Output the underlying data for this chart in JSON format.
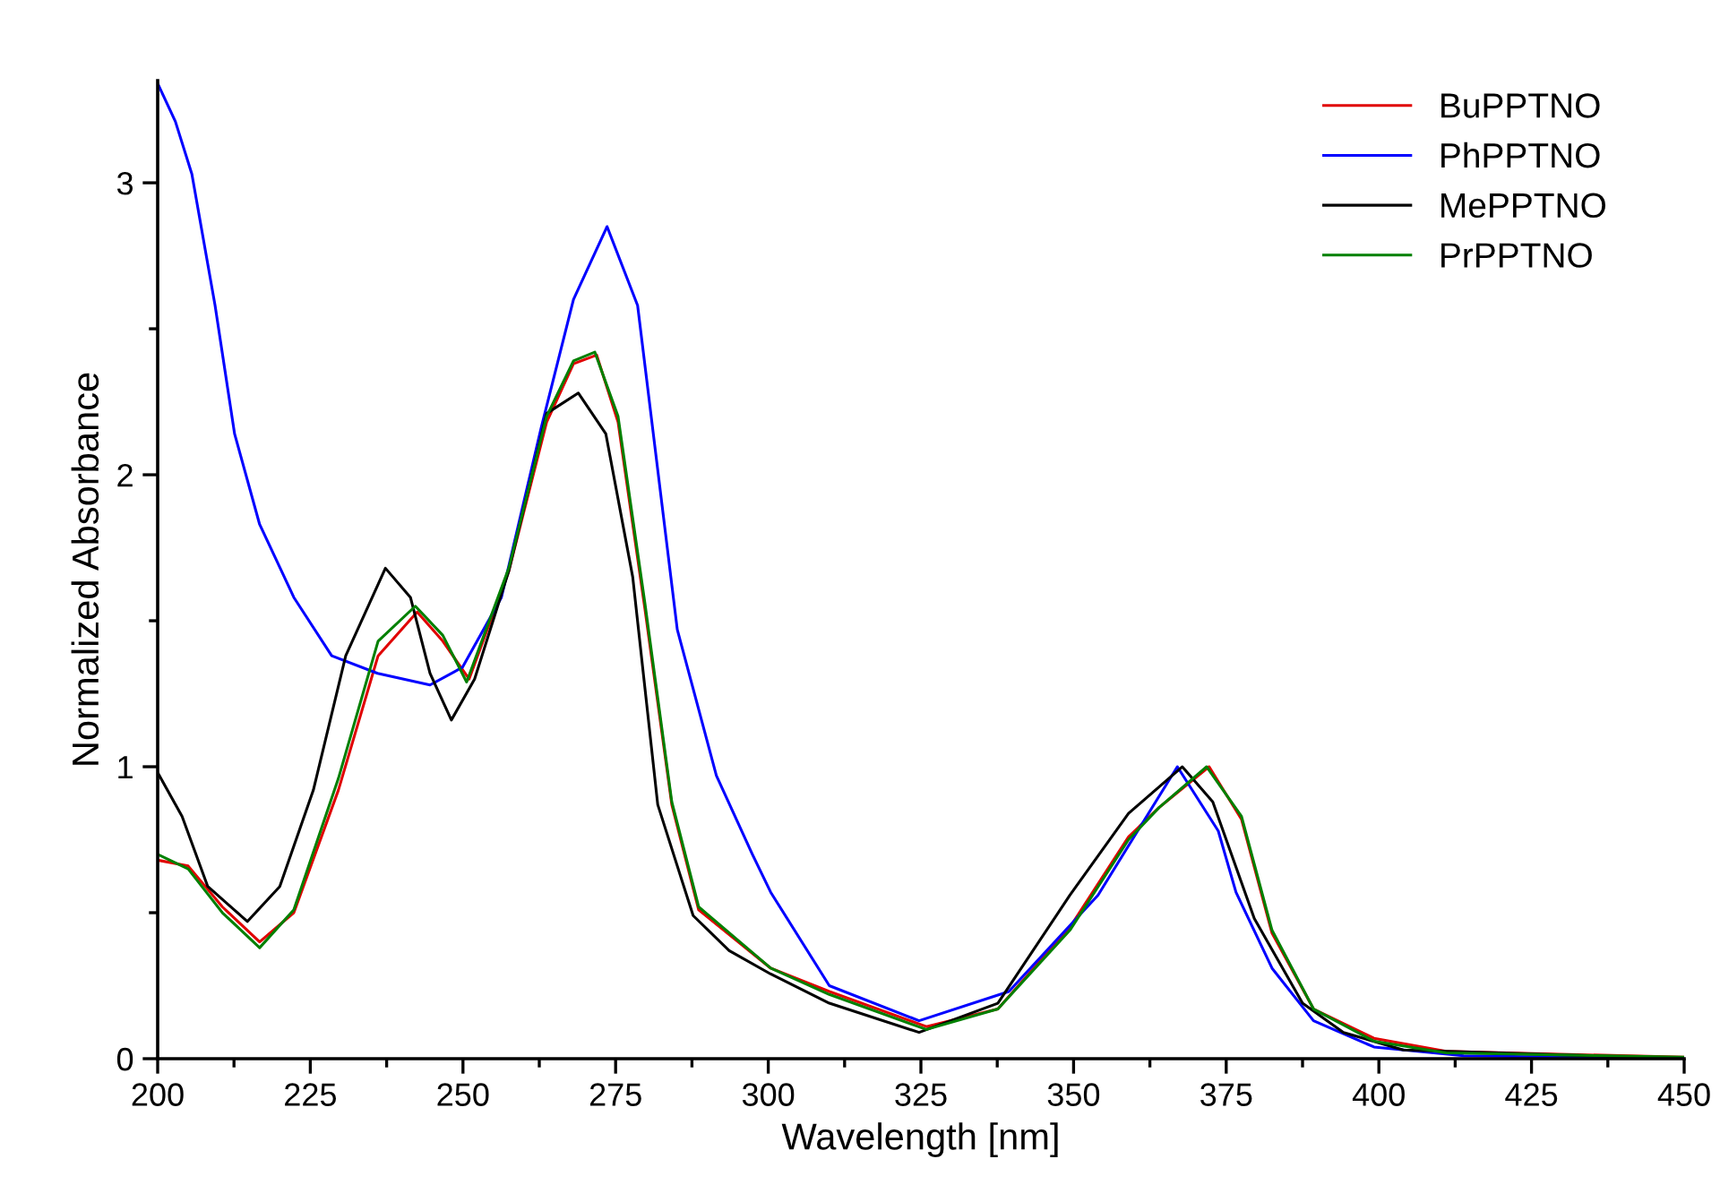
{
  "chart_data": {
    "type": "line",
    "xlabel": "Wavelength [nm]",
    "ylabel": "Normalized Absorbance",
    "xlim": [
      200,
      450
    ],
    "ylim": [
      0,
      3.35
    ],
    "xticks": [
      200,
      225,
      250,
      275,
      300,
      325,
      350,
      375,
      400,
      425,
      450
    ],
    "yticks": [
      0,
      1,
      2,
      3
    ],
    "grid": false,
    "legend": "top right",
    "marker": "none",
    "line_style": "solid",
    "series": [
      {
        "name": "BuPPTNO",
        "color": "#e00000",
        "x": [
          200,
          205,
          210.6,
          216.7,
          222.3,
          229.6,
          236.1,
          242.5,
          246.7,
          251,
          257.5,
          263.7,
          268.1,
          271.9,
          275.4,
          279.8,
          284.2,
          288.6,
          300.4,
          310,
          325.9,
          337.6,
          349.4,
          359,
          364,
          372.2,
          377.5,
          382.5,
          389.3,
          399.2,
          411,
          450
        ],
        "values": [
          0.68,
          0.66,
          0.52,
          0.4,
          0.5,
          0.92,
          1.38,
          1.53,
          1.43,
          1.3,
          1.67,
          2.18,
          2.38,
          2.41,
          2.18,
          1.54,
          0.87,
          0.51,
          0.31,
          0.23,
          0.11,
          0.17,
          0.45,
          0.76,
          0.86,
          1.0,
          0.82,
          0.43,
          0.17,
          0.07,
          0.025,
          0.005
        ]
      },
      {
        "name": "PhPPTNO",
        "color": "#0000ff",
        "x": [
          200,
          202.9,
          205.6,
          209.4,
          212.6,
          216.7,
          222.3,
          228.5,
          236,
          244.6,
          249.9,
          256.3,
          262.8,
          268.1,
          273.6,
          278.6,
          285.1,
          291.5,
          297.4,
          300.4,
          310,
          324.7,
          339.4,
          354,
          367,
          373.7,
          376.6,
          382.5,
          389.3,
          399.2,
          413.9,
          450
        ],
        "values": [
          3.34,
          3.21,
          3.03,
          2.58,
          2.14,
          1.83,
          1.58,
          1.38,
          1.32,
          1.28,
          1.34,
          1.58,
          2.16,
          2.6,
          2.85,
          2.58,
          1.47,
          0.97,
          0.7,
          0.57,
          0.25,
          0.13,
          0.23,
          0.56,
          1.0,
          0.78,
          0.57,
          0.31,
          0.13,
          0.04,
          0.01,
          0.0
        ]
      },
      {
        "name": "MePPTNO",
        "color": "#000000",
        "x": [
          200,
          204,
          208.2,
          214.7,
          220,
          225.5,
          230.8,
          237.3,
          241.4,
          244.6,
          248.1,
          251.9,
          257.5,
          263.7,
          268.9,
          273.4,
          277.8,
          281.9,
          287.7,
          293.6,
          300.4,
          310,
          324.7,
          337.6,
          349.4,
          359,
          367.8,
          372.8,
          379.6,
          387.5,
          394.2,
          404,
          450
        ],
        "values": [
          0.98,
          0.83,
          0.59,
          0.47,
          0.59,
          0.92,
          1.38,
          1.68,
          1.58,
          1.32,
          1.16,
          1.3,
          1.67,
          2.21,
          2.28,
          2.14,
          1.65,
          0.87,
          0.49,
          0.37,
          0.29,
          0.19,
          0.09,
          0.19,
          0.56,
          0.84,
          1.0,
          0.88,
          0.48,
          0.19,
          0.09,
          0.03,
          0.0
        ]
      },
      {
        "name": "PrPPTNO",
        "color": "#008000",
        "x": [
          200,
          205,
          210.6,
          216.7,
          222.3,
          229.6,
          236.1,
          242.2,
          246.7,
          250.6,
          257.5,
          263.7,
          268.1,
          271.6,
          275.4,
          279.8,
          284.2,
          288.6,
          300.4,
          310,
          325.9,
          337.6,
          349.4,
          359,
          364,
          371.8,
          377.5,
          382.5,
          389.3,
          399.2,
          411,
          450
        ],
        "values": [
          0.7,
          0.65,
          0.5,
          0.38,
          0.51,
          0.96,
          1.43,
          1.55,
          1.45,
          1.29,
          1.68,
          2.2,
          2.39,
          2.42,
          2.2,
          1.56,
          0.88,
          0.52,
          0.31,
          0.22,
          0.1,
          0.17,
          0.44,
          0.75,
          0.86,
          1.0,
          0.83,
          0.44,
          0.17,
          0.06,
          0.02,
          0.005
        ]
      }
    ]
  }
}
